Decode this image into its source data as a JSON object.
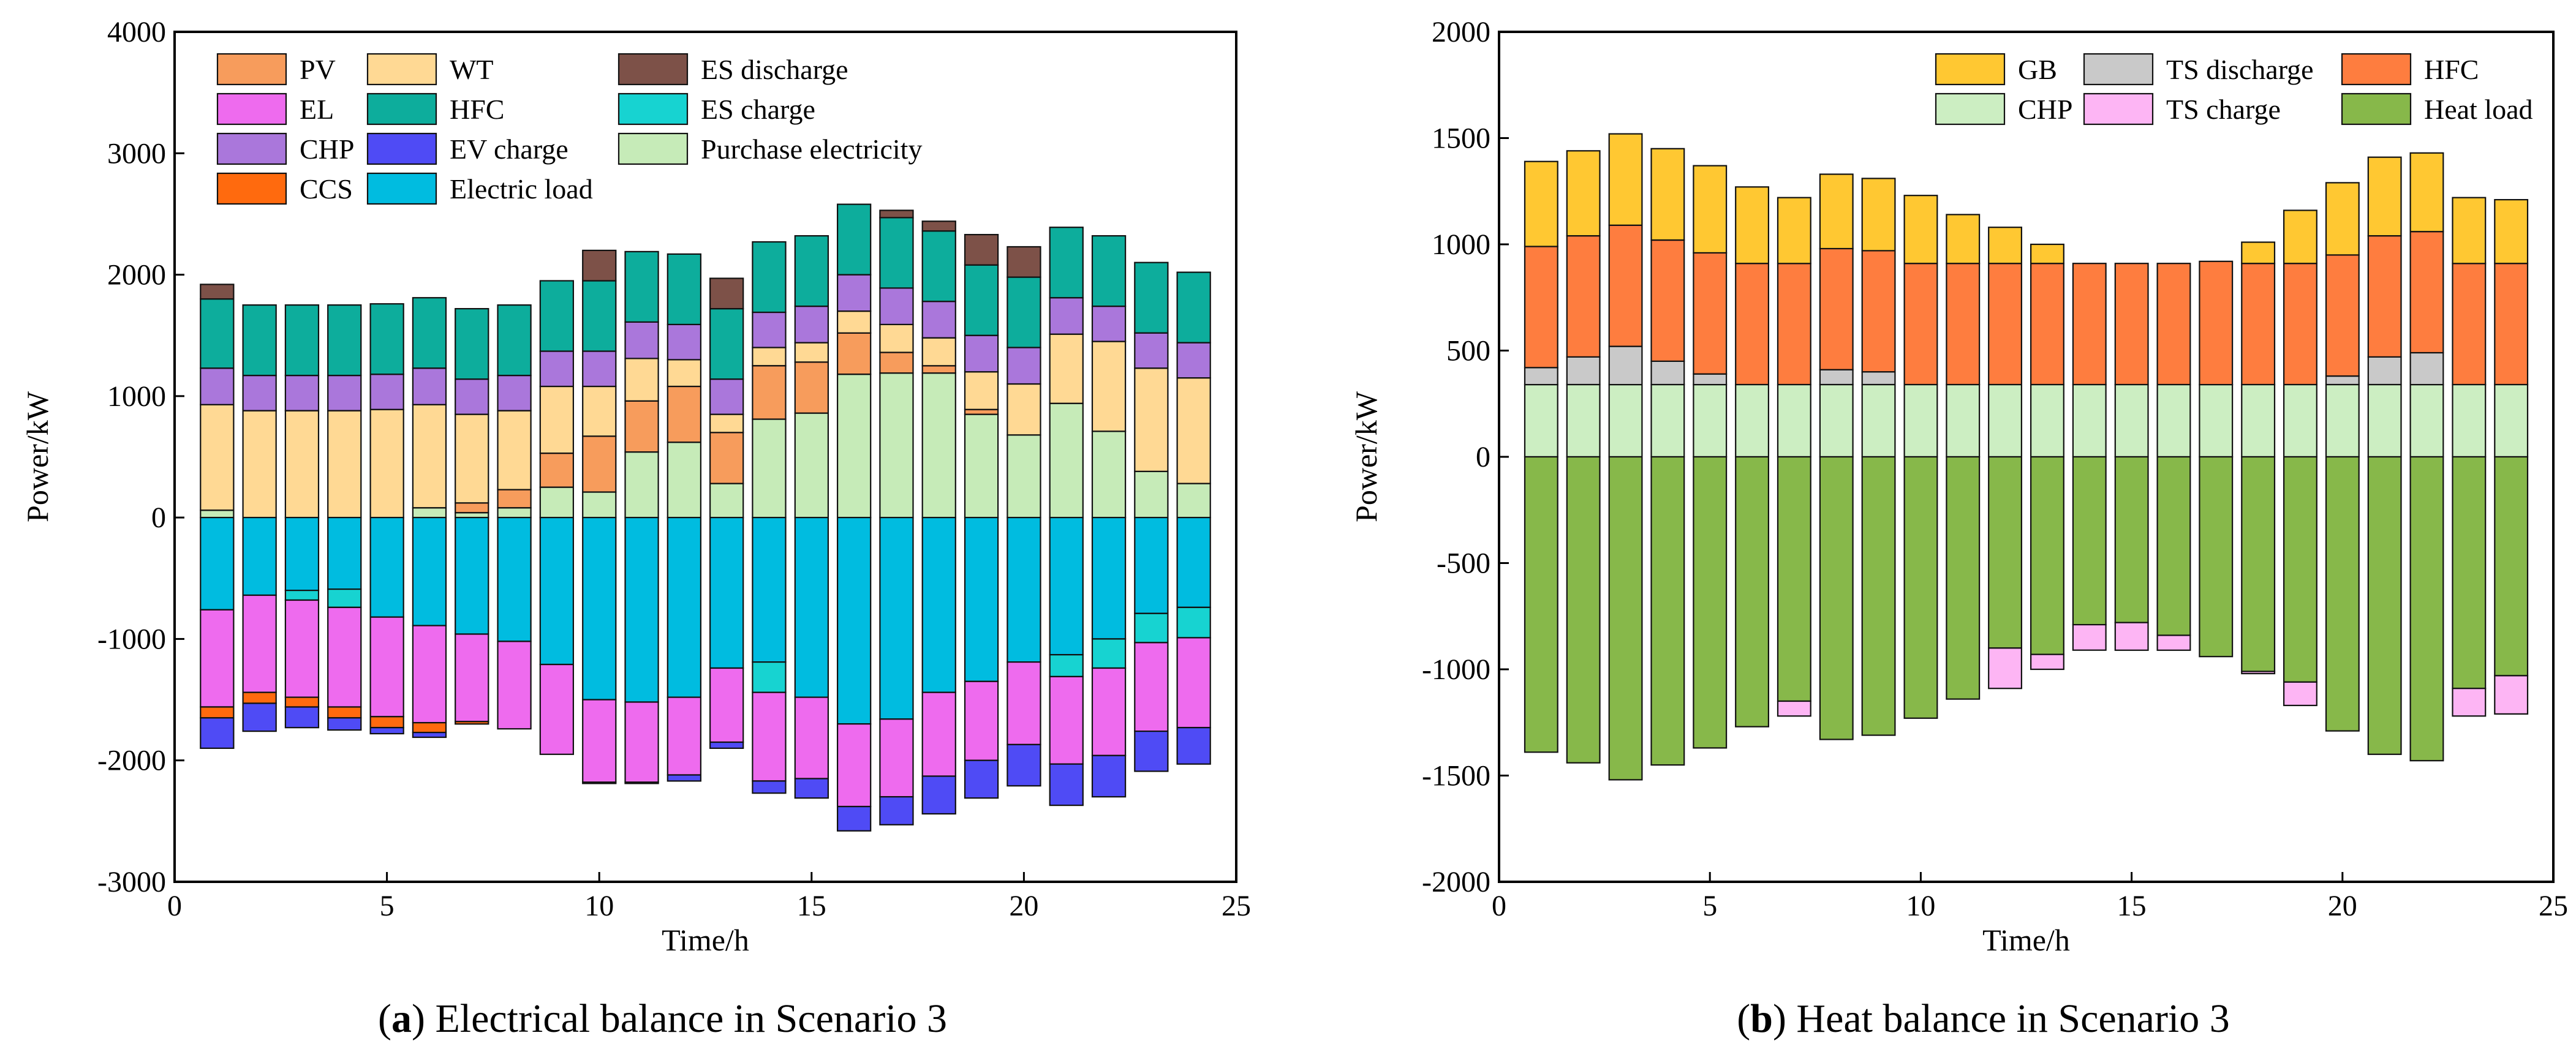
{
  "chart_data": [
    {
      "type": "bar",
      "stacked": true,
      "caption_tag": "a",
      "caption_text": " Electrical balance in Scenario 3",
      "xlabel": "Time/h",
      "ylabel": "Power/kW",
      "xlim": [
        0,
        25
      ],
      "ylim": [
        -3000,
        4000
      ],
      "xticks": [
        0,
        5,
        10,
        15,
        20,
        25
      ],
      "yticks": [
        -3000,
        -2000,
        -1000,
        0,
        1000,
        2000,
        3000,
        4000
      ],
      "x": [
        1,
        2,
        3,
        4,
        5,
        6,
        7,
        8,
        9,
        10,
        11,
        12,
        13,
        14,
        15,
        16,
        17,
        18,
        19,
        20,
        21,
        22,
        23,
        24
      ],
      "legend_columns": [
        [
          "PV",
          "EL",
          "CHP",
          "CCS"
        ],
        [
          "WT",
          "HFC",
          "EV charge",
          "Electric load"
        ],
        [
          "ES discharge",
          "ES charge",
          "Purchase electricity"
        ]
      ],
      "series": [
        {
          "name": "Purchase electricity",
          "color": "#C6EBB8",
          "values": [
            60,
            0,
            0,
            0,
            0,
            80,
            40,
            80,
            250,
            210,
            540,
            620,
            280,
            810,
            860,
            1180,
            1190,
            1190,
            850,
            680,
            940,
            710,
            380,
            280
          ]
        },
        {
          "name": "PV",
          "color": "#F79C5C",
          "values": [
            0,
            0,
            0,
            0,
            0,
            0,
            80,
            150,
            280,
            460,
            420,
            460,
            420,
            440,
            420,
            340,
            170,
            60,
            40,
            0,
            0,
            0,
            0,
            0
          ]
        },
        {
          "name": "WT",
          "color": "#FFD994",
          "values": [
            870,
            880,
            880,
            880,
            890,
            850,
            730,
            650,
            550,
            410,
            350,
            220,
            150,
            150,
            160,
            180,
            230,
            230,
            310,
            420,
            570,
            740,
            850,
            870
          ]
        },
        {
          "name": "CHP",
          "color": "#AA77DB",
          "values": [
            300,
            290,
            290,
            290,
            290,
            300,
            290,
            290,
            290,
            290,
            300,
            290,
            290,
            290,
            300,
            300,
            300,
            300,
            300,
            300,
            300,
            290,
            290,
            290
          ]
        },
        {
          "name": "HFC",
          "color": "#0DAD9C",
          "values": [
            570,
            580,
            580,
            580,
            580,
            580,
            580,
            580,
            580,
            580,
            580,
            580,
            580,
            580,
            580,
            580,
            580,
            580,
            580,
            580,
            580,
            580,
            580,
            580
          ]
        },
        {
          "name": "ES discharge",
          "color": "#7D5148",
          "values": [
            120,
            0,
            0,
            0,
            0,
            0,
            0,
            0,
            0,
            250,
            0,
            0,
            250,
            0,
            0,
            0,
            60,
            80,
            250,
            250,
            0,
            0,
            0,
            0
          ]
        },
        {
          "name": "Electric load",
          "color": "#00BCE0",
          "values": [
            -760,
            -640,
            -600,
            -590,
            -820,
            -890,
            -960,
            -1020,
            -1210,
            -1500,
            -1520,
            -1480,
            -1240,
            -1190,
            -1480,
            -1700,
            -1660,
            -1440,
            -1350,
            -1190,
            -1130,
            -1000,
            -790,
            -740
          ]
        },
        {
          "name": "ES charge",
          "color": "#17D3D1",
          "values": [
            0,
            0,
            -80,
            -150,
            0,
            0,
            0,
            0,
            0,
            0,
            0,
            0,
            0,
            -250,
            0,
            0,
            0,
            0,
            0,
            0,
            -180,
            -240,
            -240,
            -250
          ]
        },
        {
          "name": "EL",
          "color": "#EE6BEE",
          "values": [
            -800,
            -800,
            -800,
            -820,
            -820,
            -800,
            -720,
            -720,
            -740,
            -680,
            -660,
            -640,
            -610,
            -730,
            -670,
            -680,
            -640,
            -690,
            -650,
            -680,
            -720,
            -720,
            -730,
            -740
          ]
        },
        {
          "name": "CCS",
          "color": "#FF6A0E",
          "values": [
            -90,
            -90,
            -80,
            -90,
            -90,
            -80,
            -20,
            0,
            0,
            0,
            0,
            0,
            0,
            0,
            0,
            0,
            0,
            0,
            0,
            0,
            0,
            0,
            0,
            0
          ]
        },
        {
          "name": "EV charge",
          "color": "#4F4BF5",
          "values": [
            -250,
            -230,
            -170,
            -100,
            -50,
            -40,
            0,
            0,
            0,
            -10,
            -10,
            -50,
            -50,
            -100,
            -160,
            -200,
            -230,
            -310,
            -310,
            -340,
            -340,
            -340,
            -330,
            -300
          ]
        }
      ]
    },
    {
      "type": "bar",
      "stacked": true,
      "caption_tag": "b",
      "caption_text": " Heat balance in Scenario 3",
      "xlabel": "Time/h",
      "ylabel": "Power/kW",
      "xlim": [
        0,
        25
      ],
      "ylim": [
        -2000,
        2000
      ],
      "xticks": [
        0,
        5,
        10,
        15,
        20,
        25
      ],
      "yticks": [
        -2000,
        -1500,
        -1000,
        -500,
        0,
        500,
        1000,
        1500,
        2000
      ],
      "x": [
        1,
        2,
        3,
        4,
        5,
        6,
        7,
        8,
        9,
        10,
        11,
        12,
        13,
        14,
        15,
        16,
        17,
        18,
        19,
        20,
        21,
        22,
        23,
        24
      ],
      "legend_columns": [
        [
          "GB",
          "CHP"
        ],
        [
          "TS discharge",
          "TS charge"
        ],
        [
          "HFC",
          "Heat load"
        ]
      ],
      "series": [
        {
          "name": "CHP",
          "color": "#CCEEC2",
          "values": [
            340,
            340,
            340,
            340,
            340,
            340,
            340,
            340,
            340,
            340,
            340,
            340,
            340,
            340,
            340,
            340,
            340,
            340,
            340,
            340,
            340,
            340,
            340,
            340
          ]
        },
        {
          "name": "TS discharge",
          "color": "#C9C9C9",
          "values": [
            80,
            130,
            180,
            110,
            50,
            0,
            0,
            70,
            60,
            0,
            0,
            0,
            0,
            0,
            0,
            0,
            0,
            0,
            0,
            40,
            130,
            150,
            0,
            0
          ]
        },
        {
          "name": "HFC",
          "color": "#FE7D3F",
          "values": [
            570,
            570,
            570,
            570,
            570,
            570,
            570,
            570,
            570,
            570,
            570,
            570,
            570,
            570,
            570,
            570,
            580,
            570,
            570,
            570,
            570,
            570,
            570,
            570
          ]
        },
        {
          "name": "GB",
          "color": "#FFC832",
          "values": [
            400,
            400,
            430,
            430,
            410,
            360,
            310,
            350,
            340,
            320,
            230,
            170,
            90,
            0,
            0,
            0,
            0,
            100,
            250,
            340,
            370,
            370,
            310,
            300
          ]
        },
        {
          "name": "Heat load",
          "color": "#87B84A",
          "values": [
            -1390,
            -1440,
            -1520,
            -1450,
            -1370,
            -1270,
            -1150,
            -1330,
            -1310,
            -1230,
            -1140,
            -900,
            -930,
            -790,
            -780,
            -840,
            -940,
            -1010,
            -1060,
            -1290,
            -1400,
            -1430,
            -1090,
            -1030
          ]
        },
        {
          "name": "TS charge",
          "color": "#FDB5F4",
          "values": [
            0,
            0,
            0,
            0,
            0,
            0,
            -70,
            0,
            0,
            0,
            0,
            -190,
            -70,
            -120,
            -130,
            -70,
            0,
            -10,
            -110,
            0,
            0,
            0,
            -130,
            -180
          ]
        }
      ]
    }
  ]
}
